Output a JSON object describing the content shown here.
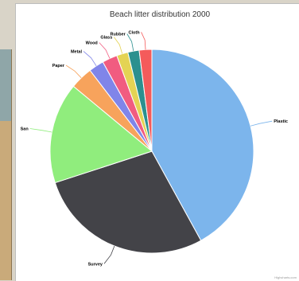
{
  "chart_data": {
    "type": "pie",
    "title": "Beach litter distribution 2000",
    "slices": [
      {
        "label": "Plastic",
        "value": 42.0,
        "color": "#7cb5ec"
      },
      {
        "label": "Survey",
        "value": 28.0,
        "color": "#434348"
      },
      {
        "label": "San",
        "value": 16.0,
        "color": "#90ed7d"
      },
      {
        "label": "Paper",
        "value": 3.6,
        "color": "#f7a35c"
      },
      {
        "label": "Metal",
        "value": 2.4,
        "color": "#8085e9"
      },
      {
        "label": "Wood",
        "value": 2.4,
        "color": "#f15c80"
      },
      {
        "label": "Glass",
        "value": 1.8,
        "color": "#e4d354"
      },
      {
        "label": "Rubber",
        "value": 1.8,
        "color": "#2b908f"
      },
      {
        "label": "Cloth",
        "value": 2.0,
        "color": "#f45b5b"
      }
    ]
  },
  "credits": "Highcharts.com"
}
